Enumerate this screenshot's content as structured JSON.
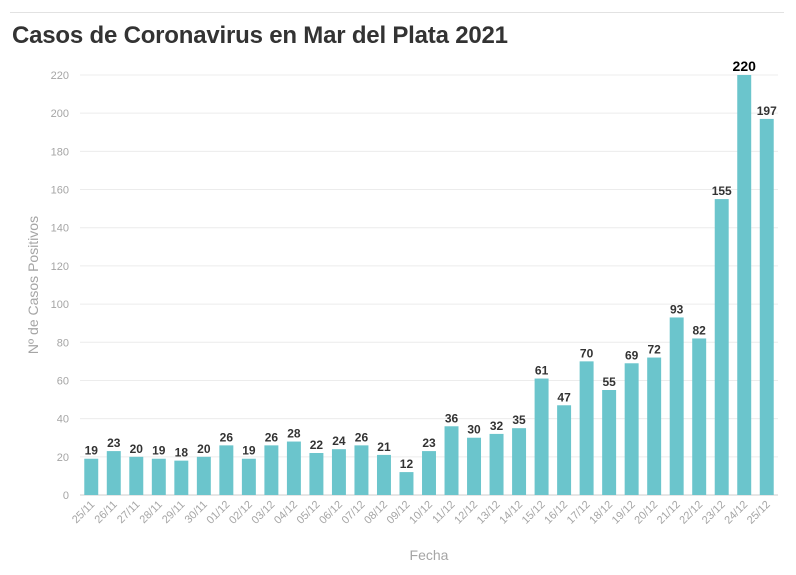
{
  "title": "Casos de Coronavirus en Mar del Plata 2021",
  "chart_data": {
    "type": "bar",
    "title": "Casos de Coronavirus en Mar del Plata 2021",
    "xlabel": "Fecha",
    "ylabel": "Nº de Casos Positivos",
    "ylim": [
      0,
      220
    ],
    "yticks": [
      0,
      20,
      40,
      60,
      80,
      100,
      120,
      140,
      160,
      180,
      200,
      220
    ],
    "grid": true,
    "bar_color": "#6bc5cc",
    "categories": [
      "25/11",
      "26/11",
      "27/11",
      "28/11",
      "29/11",
      "30/11",
      "01/12",
      "02/12",
      "03/12",
      "04/12",
      "05/12",
      "06/12",
      "07/12",
      "08/12",
      "09/12",
      "10/12",
      "11/12",
      "12/12",
      "13/12",
      "14/12",
      "15/12",
      "16/12",
      "17/12",
      "18/12",
      "19/12",
      "20/12",
      "21/12",
      "22/12",
      "23/12",
      "24/12",
      "25/12"
    ],
    "values": [
      19,
      23,
      20,
      19,
      18,
      20,
      26,
      19,
      26,
      28,
      22,
      24,
      26,
      21,
      12,
      23,
      36,
      30,
      32,
      35,
      61,
      47,
      70,
      55,
      69,
      72,
      93,
      82,
      155,
      220,
      197
    ]
  }
}
